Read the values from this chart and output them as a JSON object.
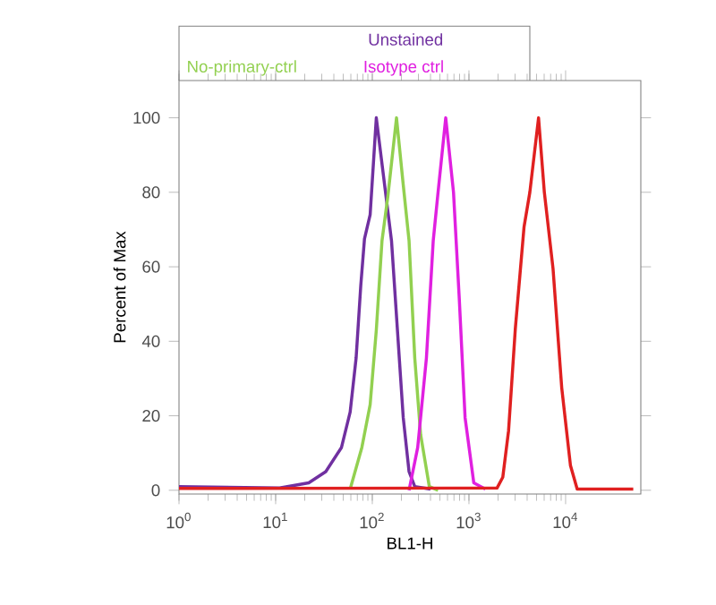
{
  "chart_data": {
    "type": "line",
    "xlabel": "BL1-H",
    "ylabel": "Percent of Max",
    "log": "x",
    "legend": "top",
    "xlim": [
      1,
      60000
    ],
    "ylim": [
      -1,
      110
    ],
    "xticks": [
      {
        "value": 1,
        "label": "10$^{0}$"
      },
      {
        "value": 10,
        "label": "10$^{1}$"
      },
      {
        "value": 100,
        "label": "10$^{2}$"
      },
      {
        "value": 1000,
        "label": "10$^{3}$"
      },
      {
        "value": 10000,
        "label": "10$^{4}$"
      }
    ],
    "yticks": [
      0,
      20,
      40,
      60,
      80,
      100
    ],
    "series": [
      {
        "name": "Unstained",
        "color": "#7030a0",
        "x": [
          1,
          11,
          22,
          33,
          48,
          59,
          68,
          76,
          83,
          95,
          110,
          158,
          182,
          209,
          240,
          275,
          400
        ],
        "values": [
          1,
          0.6,
          2,
          5,
          11.5,
          21,
          35.5,
          55,
          67.5,
          74,
          100,
          67,
          43,
          19.5,
          5,
          1,
          0.3
        ]
      },
      {
        "name": "No-primary-ctrl",
        "color": "#92d050",
        "x": [
          59,
          78,
          95,
          110,
          126,
          145,
          178,
          209,
          240,
          275,
          316,
          389,
          479
        ],
        "values": [
          0.3,
          11.5,
          23,
          43,
          67,
          79,
          100,
          82,
          67,
          35.5,
          15,
          1,
          0
        ]
      },
      {
        "name": "Isotype ctrl",
        "color": "#e020e0",
        "x": [
          240,
          295,
          363,
          427,
          479,
          575,
          692,
          794,
          912,
          1122,
          1479
        ],
        "values": [
          0,
          11.5,
          35.5,
          67,
          80,
          100,
          80,
          51.5,
          19.5,
          2,
          0.3
        ]
      },
      {
        "color": "#e02020",
        "x": [
          1,
          1950,
          2239,
          2570,
          3020,
          3715,
          4266,
          5248,
          6026,
          7413,
          9120,
          11220,
          13183,
          50119
        ],
        "values": [
          0.5,
          0.6,
          3.5,
          16,
          43.5,
          70.7,
          80,
          100,
          80,
          59.5,
          27.5,
          6.7,
          0.3,
          0.3
        ]
      }
    ]
  }
}
